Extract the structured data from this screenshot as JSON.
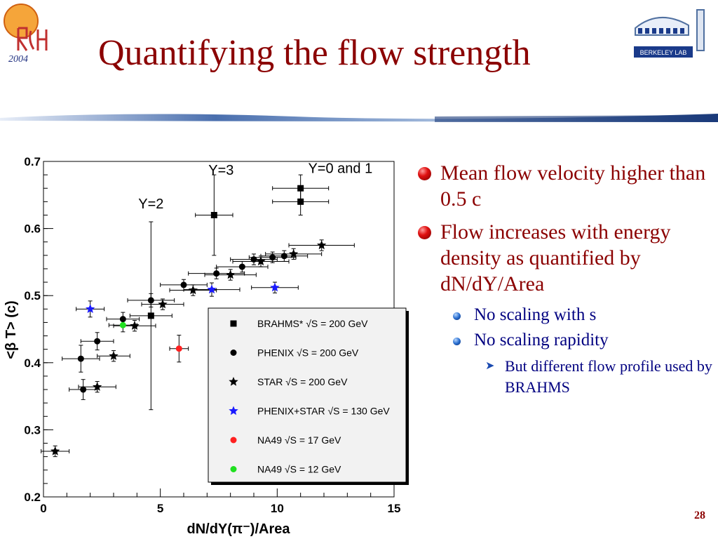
{
  "slide": {
    "title": "Quantifying the flow strength",
    "page_number": "28",
    "logo_left_text": "2004",
    "logo_right_text": "BERKELEY LAB"
  },
  "bullets": [
    {
      "text": "Mean flow velocity higher than 0.5 c"
    },
    {
      "text": "Flow increases with energy density as quantified by dN/dY/Area"
    }
  ],
  "sub_bullets": [
    {
      "text": "No scaling with s"
    },
    {
      "text": "No scaling rapidity"
    }
  ],
  "sub_sub_bullets": [
    {
      "text": "But different flow profile used by BRAHMS"
    }
  ],
  "chart_data": {
    "type": "scatter",
    "xlabel": "dN/dY(π⁻)/Area",
    "ylabel": "<β T> (c)",
    "xlim": [
      0,
      15
    ],
    "ylim": [
      0.2,
      0.7
    ],
    "xticks": [
      0,
      5,
      10,
      15
    ],
    "yticks": [
      0.2,
      0.3,
      0.4,
      0.5,
      0.6,
      0.7
    ],
    "legend_position": "bottom-right",
    "annotations": [
      {
        "text": "Y=3",
        "x": 7.6,
        "y": 0.68
      },
      {
        "text": "Y=0 and 1",
        "x": 12.7,
        "y": 0.683
      },
      {
        "text": "Y=2",
        "x": 4.6,
        "y": 0.63
      }
    ],
    "series": [
      {
        "name": "BRAHMS* √S = 200 GeV",
        "marker": "square",
        "color": "#000000",
        "points": [
          {
            "x": 4.6,
            "y": 0.47,
            "ex": 0.9,
            "eyl": 0.14,
            "eyh": 0.14
          },
          {
            "x": 7.3,
            "y": 0.62,
            "ex": 0.8,
            "eyl": 0.06,
            "eyh": 0.06
          },
          {
            "x": 11.0,
            "y": 0.66,
            "ex": 1.2,
            "eyl": 0.02,
            "eyh": 0.02
          },
          {
            "x": 11.0,
            "y": 0.64,
            "ex": 1.2,
            "eyl": 0.02,
            "eyh": 0.02
          }
        ]
      },
      {
        "name": "PHENIX √S = 200 GeV",
        "marker": "circle",
        "color": "#000000",
        "points": [
          {
            "x": 1.6,
            "y": 0.406,
            "ex": 0.8,
            "eyl": 0.02,
            "eyh": 0.02
          },
          {
            "x": 1.7,
            "y": 0.36,
            "ex": 0.6,
            "eyl": 0.015,
            "eyh": 0.015
          },
          {
            "x": 2.3,
            "y": 0.432,
            "ex": 0.7,
            "eyl": 0.013,
            "eyh": 0.013
          },
          {
            "x": 3.4,
            "y": 0.465,
            "ex": 0.7,
            "eyl": 0.01,
            "eyh": 0.01
          },
          {
            "x": 4.6,
            "y": 0.493,
            "ex": 1.0,
            "eyl": 0.01,
            "eyh": 0.01
          },
          {
            "x": 6.0,
            "y": 0.516,
            "ex": 1.0,
            "eyl": 0.008,
            "eyh": 0.008
          },
          {
            "x": 7.4,
            "y": 0.533,
            "ex": 1.2,
            "eyl": 0.008,
            "eyh": 0.008
          },
          {
            "x": 8.5,
            "y": 0.543,
            "ex": 1.1,
            "eyl": 0.008,
            "eyh": 0.008
          },
          {
            "x": 9.0,
            "y": 0.554,
            "ex": 1.0,
            "eyl": 0.008,
            "eyh": 0.008
          },
          {
            "x": 9.8,
            "y": 0.557,
            "ex": 1.0,
            "eyl": 0.008,
            "eyh": 0.008
          },
          {
            "x": 10.3,
            "y": 0.559,
            "ex": 1.0,
            "eyl": 0.008,
            "eyh": 0.008
          }
        ]
      },
      {
        "name": "STAR √S = 200 GeV",
        "marker": "star",
        "color": "#000000",
        "points": [
          {
            "x": 0.5,
            "y": 0.268,
            "ex": 0.6,
            "eyl": 0.008,
            "eyh": 0.008
          },
          {
            "x": 2.3,
            "y": 0.364,
            "ex": 0.8,
            "eyl": 0.008,
            "eyh": 0.008
          },
          {
            "x": 3.0,
            "y": 0.41,
            "ex": 0.7,
            "eyl": 0.008,
            "eyh": 0.008
          },
          {
            "x": 3.9,
            "y": 0.455,
            "ex": 0.9,
            "eyl": 0.008,
            "eyh": 0.008
          },
          {
            "x": 5.1,
            "y": 0.487,
            "ex": 0.9,
            "eyl": 0.008,
            "eyh": 0.008
          },
          {
            "x": 6.4,
            "y": 0.508,
            "ex": 1.0,
            "eyl": 0.008,
            "eyh": 0.008
          },
          {
            "x": 8.0,
            "y": 0.531,
            "ex": 1.1,
            "eyl": 0.008,
            "eyh": 0.008
          },
          {
            "x": 9.3,
            "y": 0.551,
            "ex": 1.2,
            "eyl": 0.008,
            "eyh": 0.008
          },
          {
            "x": 10.7,
            "y": 0.562,
            "ex": 1.2,
            "eyl": 0.008,
            "eyh": 0.008
          },
          {
            "x": 11.9,
            "y": 0.575,
            "ex": 1.4,
            "eyl": 0.008,
            "eyh": 0.008
          }
        ]
      },
      {
        "name": "PHENIX+STAR √S = 130 GeV",
        "marker": "star",
        "color": "#1a1aff",
        "points": [
          {
            "x": 2.0,
            "y": 0.48,
            "ex": 0.6,
            "eyl": 0.012,
            "eyh": 0.012
          },
          {
            "x": 7.2,
            "y": 0.509,
            "ex": 1.2,
            "eyl": 0.01,
            "eyh": 0.01
          },
          {
            "x": 9.9,
            "y": 0.512,
            "ex": 1.0,
            "eyl": 0.008,
            "eyh": 0.008
          }
        ]
      },
      {
        "name": "NA49 √S = 17 GeV",
        "marker": "circle",
        "color": "#ff2020",
        "points": [
          {
            "x": 5.8,
            "y": 0.421,
            "ex": 0.4,
            "eyl": 0.02,
            "eyh": 0.02
          }
        ]
      },
      {
        "name": "NA49 √S = 12 GeV",
        "marker": "circle",
        "color": "#20e020",
        "points": [
          {
            "x": 3.4,
            "y": 0.456,
            "ex": 0.6,
            "eyl": 0.01,
            "eyh": 0.01
          }
        ]
      }
    ]
  }
}
